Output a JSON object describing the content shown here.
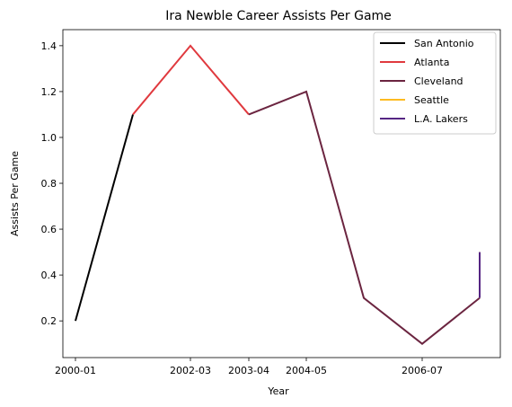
{
  "chart_data": {
    "type": "line",
    "title": "Ira Newble Career Assists Per Game",
    "xlabel": "Year",
    "ylabel": "Assists Per Game",
    "x_ticks": [
      "2000-01",
      "2002-03",
      "2003-04",
      "2004-05",
      "2006-07"
    ],
    "y_ticks": [
      "0.2",
      "0.4",
      "0.6",
      "0.8",
      "1.0",
      "1.2",
      "1.4"
    ],
    "ylim": [
      0.04,
      1.47
    ],
    "grid": false,
    "legend_position": "top-right",
    "series": [
      {
        "name": "San Antonio",
        "color": "#000000",
        "points": [
          [
            "2000-01",
            0.2
          ],
          [
            "2001-02",
            1.1
          ]
        ]
      },
      {
        "name": "Atlanta",
        "color": "#e0393e",
        "points": [
          [
            "2001-02",
            1.1
          ],
          [
            "2002-03",
            1.4
          ],
          [
            "2003-04",
            1.1
          ]
        ]
      },
      {
        "name": "Cleveland",
        "color": "#6b2540",
        "points": [
          [
            "2003-04",
            1.1
          ],
          [
            "2004-05",
            1.2
          ],
          [
            "2005-06",
            0.3
          ],
          [
            "2006-07",
            0.1
          ],
          [
            "2007-08",
            0.3
          ]
        ]
      },
      {
        "name": "Seattle",
        "color": "#fdbb21",
        "points": [
          [
            "2007-08",
            0.3
          ],
          [
            "2007-08",
            0.5
          ]
        ]
      },
      {
        "name": "L.A. Lakers",
        "color": "#552583",
        "points": [
          [
            "2007-08",
            0.3
          ],
          [
            "2007-08",
            0.5
          ]
        ]
      }
    ]
  }
}
